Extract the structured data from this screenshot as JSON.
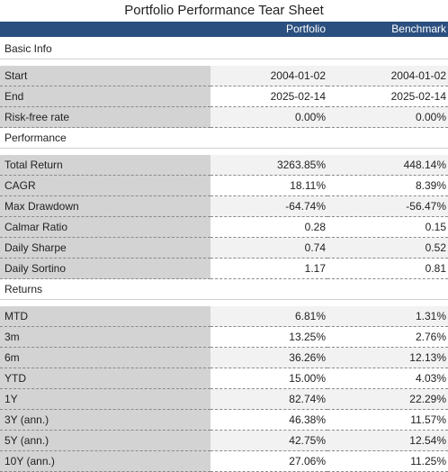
{
  "title": "Portfolio Performance Tear Sheet",
  "columns": {
    "portfolio": "Portfolio",
    "benchmark": "Benchmark"
  },
  "sections": [
    {
      "name": "Basic Info",
      "rows": [
        {
          "label": "Start",
          "portfolio": "2004-01-02",
          "benchmark": "2004-01-02"
        },
        {
          "label": "End",
          "portfolio": "2025-02-14",
          "benchmark": "2025-02-14"
        },
        {
          "label": "Risk-free rate",
          "portfolio": "0.00%",
          "benchmark": "0.00%"
        }
      ]
    },
    {
      "name": "Performance",
      "rows": [
        {
          "label": "Total Return",
          "portfolio": "3263.85%",
          "benchmark": "448.14%"
        },
        {
          "label": "CAGR",
          "portfolio": "18.11%",
          "benchmark": "8.39%"
        },
        {
          "label": "Max Drawdown",
          "portfolio": "-64.74%",
          "benchmark": "-56.47%"
        },
        {
          "label": "Calmar Ratio",
          "portfolio": "0.28",
          "benchmark": "0.15"
        },
        {
          "label": "Daily Sharpe",
          "portfolio": "0.74",
          "benchmark": "0.52"
        },
        {
          "label": "Daily Sortino",
          "portfolio": "1.17",
          "benchmark": "0.81"
        }
      ]
    },
    {
      "name": "Returns",
      "rows": [
        {
          "label": "MTD",
          "portfolio": "6.81%",
          "benchmark": "1.31%"
        },
        {
          "label": "3m",
          "portfolio": "13.25%",
          "benchmark": "2.76%"
        },
        {
          "label": "6m",
          "portfolio": "36.26%",
          "benchmark": "12.13%"
        },
        {
          "label": "YTD",
          "portfolio": "15.00%",
          "benchmark": "4.03%"
        },
        {
          "label": "1Y",
          "portfolio": "82.74%",
          "benchmark": "22.29%"
        },
        {
          "label": "3Y (ann.)",
          "portfolio": "46.38%",
          "benchmark": "11.57%"
        },
        {
          "label": "5Y (ann.)",
          "portfolio": "42.75%",
          "benchmark": "12.54%"
        },
        {
          "label": "10Y (ann.)",
          "portfolio": "27.06%",
          "benchmark": "11.25%"
        }
      ]
    }
  ]
}
